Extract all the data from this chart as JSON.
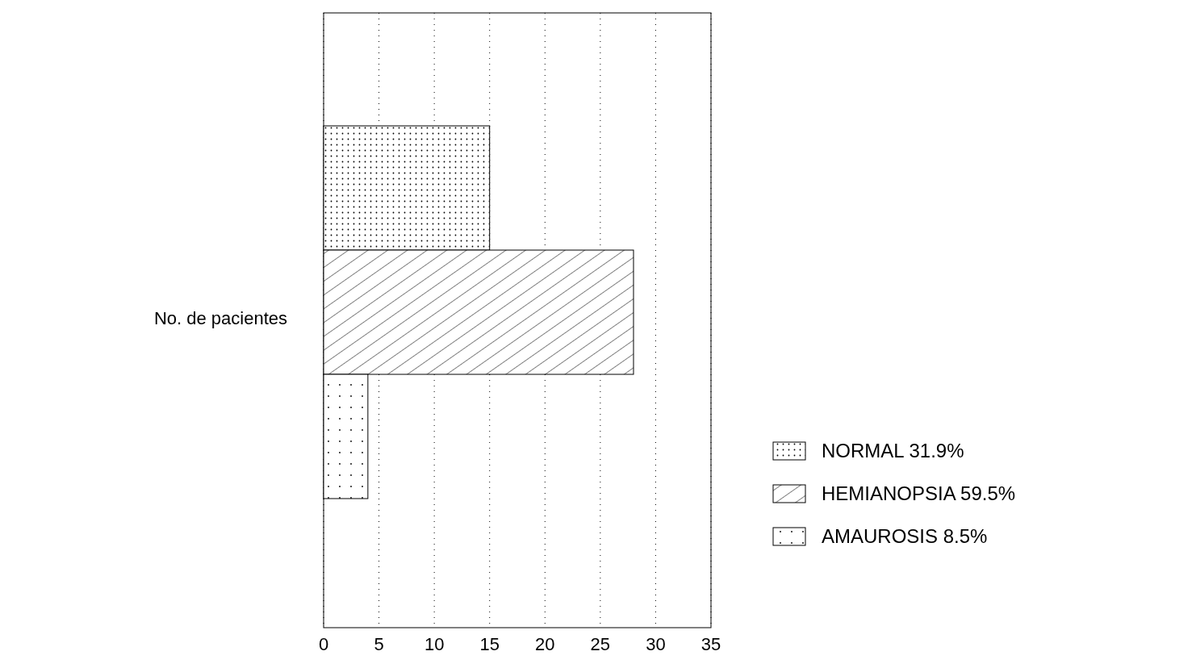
{
  "chart_data": {
    "type": "bar",
    "orientation": "horizontal",
    "ylabel": "No. de pacientes",
    "categories": [
      null,
      null,
      null
    ],
    "series": [
      {
        "name": "NORMAL 31.9%",
        "color": "#000000",
        "values": [
          15,
          null,
          null
        ]
      },
      {
        "name": "HEMIANOPSIA 59.5%",
        "color": "#000000",
        "values": [
          null,
          28,
          null
        ]
      },
      {
        "name": "AMAUROSIS  8.5%",
        "color": "#000000",
        "values": [
          null,
          null,
          4
        ]
      }
    ],
    "xlim": [
      0,
      35
    ],
    "xticks": [
      0,
      5,
      10,
      15,
      20,
      25,
      30,
      35
    ],
    "grid": "x",
    "legend": "right"
  }
}
